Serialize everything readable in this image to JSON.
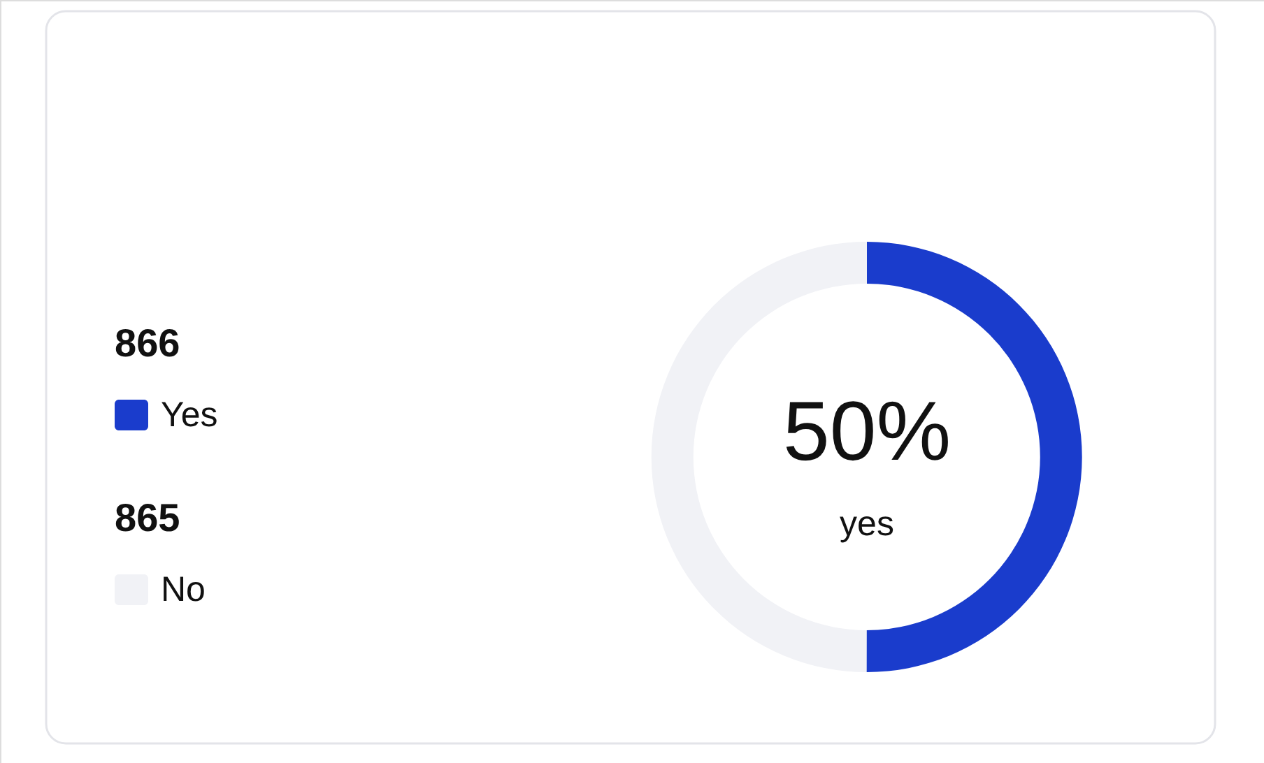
{
  "chart_data": {
    "type": "donut",
    "categories": [
      "Yes",
      "No"
    ],
    "values": [
      866,
      865
    ],
    "colors": [
      "#1a3ccc",
      "#f1f2f6"
    ],
    "data_labels": true,
    "legend": "left",
    "annotations": [
      "50%",
      "yes"
    ]
  }
}
